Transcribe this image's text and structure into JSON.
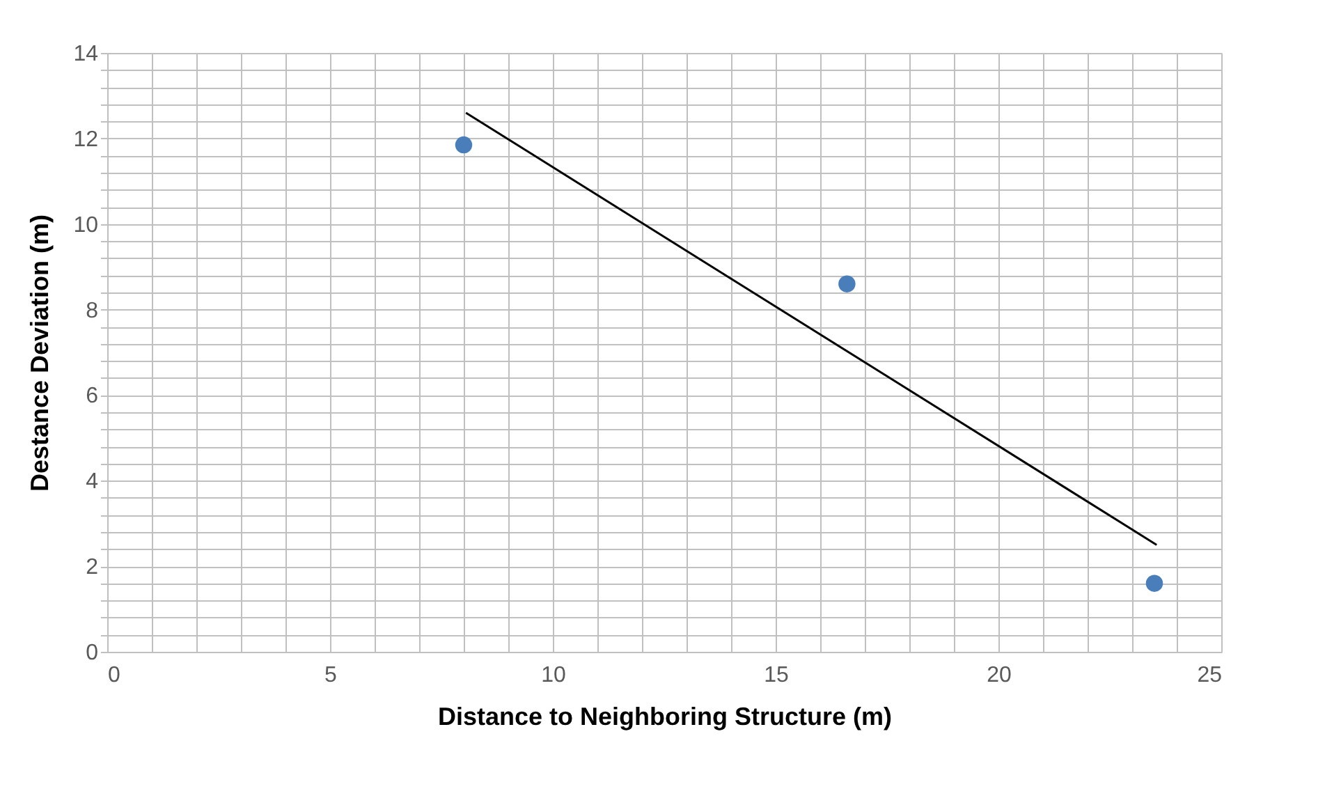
{
  "chart_data": {
    "type": "scatter",
    "xlabel": "Distance to Neighboring Structure (m)",
    "ylabel": "Destance Deviation (m)",
    "xlim": [
      0,
      25
    ],
    "ylim": [
      0,
      14
    ],
    "xticks": [
      0,
      {
        "value": 1,
        "label": null
      },
      {
        "value": 2,
        "label": null
      },
      {
        "value": 3,
        "label": null
      },
      {
        "value": 4,
        "label": null
      },
      5,
      {
        "value": 6,
        "label": null
      },
      {
        "value": 7,
        "label": null
      },
      {
        "value": 8,
        "label": null
      },
      {
        "value": 9,
        "label": null
      },
      10,
      {
        "value": 11,
        "label": null
      },
      {
        "value": 12,
        "label": null
      },
      {
        "value": 13,
        "label": null
      },
      {
        "value": 14,
        "label": null
      },
      15,
      {
        "value": 16,
        "label": null
      },
      {
        "value": 17,
        "label": null
      },
      {
        "value": 18,
        "label": null
      },
      {
        "value": 19,
        "label": null
      },
      20,
      {
        "value": 21,
        "label": null
      },
      {
        "value": 22,
        "label": null
      },
      {
        "value": 23,
        "label": null
      },
      {
        "value": 24,
        "label": null
      },
      25
    ],
    "yticks": [
      0,
      {
        "value": 0.4,
        "label": null
      },
      {
        "value": 0.8,
        "label": null
      },
      {
        "value": 1.2,
        "label": null
      },
      {
        "value": 1.6,
        "label": null
      },
      2,
      {
        "value": 2.4,
        "label": null
      },
      {
        "value": 2.8,
        "label": null
      },
      {
        "value": 3.2,
        "label": null
      },
      {
        "value": 3.6,
        "label": null
      },
      4,
      {
        "value": 4.4,
        "label": null
      },
      {
        "value": 4.8,
        "label": null
      },
      {
        "value": 5.2,
        "label": null
      },
      {
        "value": 5.6,
        "label": null
      },
      6,
      {
        "value": 6.4,
        "label": null
      },
      {
        "value": 6.8,
        "label": null
      },
      {
        "value": 7.2,
        "label": null
      },
      {
        "value": 7.6,
        "label": null
      },
      8,
      {
        "value": 8.4,
        "label": null
      },
      {
        "value": 8.8,
        "label": null
      },
      {
        "value": 9.2,
        "label": null
      },
      {
        "value": 9.6,
        "label": null
      },
      10,
      {
        "value": 10.4,
        "label": null
      },
      {
        "value": 10.8,
        "label": null
      },
      {
        "value": 11.2,
        "label": null
      },
      {
        "value": 11.6,
        "label": null
      },
      12,
      {
        "value": 12.4,
        "label": null
      },
      {
        "value": 12.8,
        "label": null
      },
      {
        "value": 13.2,
        "label": null
      },
      {
        "value": 13.6,
        "label": null
      },
      14
    ],
    "grid": true,
    "marker": "circle",
    "series": [
      {
        "type": "scatter",
        "color": "#4a7ebb",
        "x": [
          8.0,
          16.6,
          23.5
        ],
        "values": [
          11.85,
          8.6,
          1.6
        ]
      },
      {
        "type": "line",
        "color": "#000000",
        "marker": "none",
        "line_style": "solid",
        "x": [
          8.05,
          23.55
        ],
        "values": [
          12.6,
          2.5
        ]
      }
    ]
  }
}
